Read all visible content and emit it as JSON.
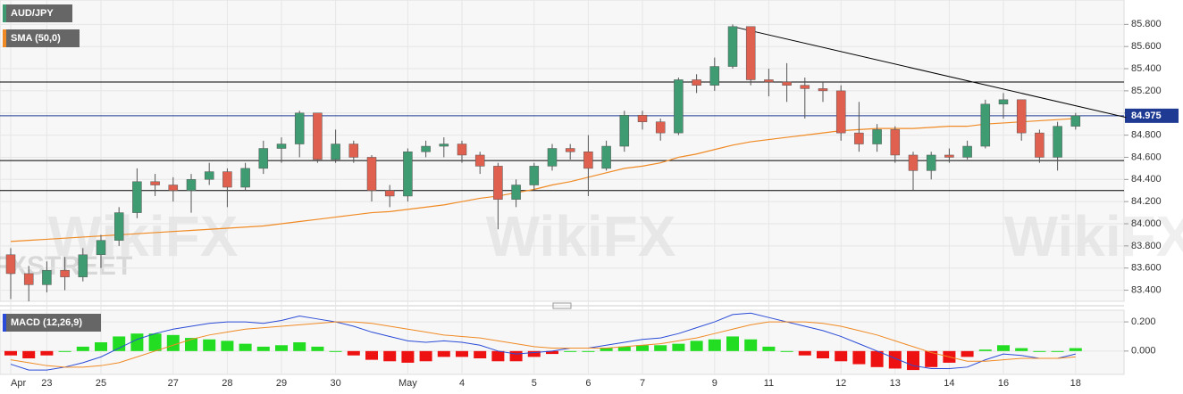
{
  "chart_data": [
    {
      "type": "candlestick",
      "title": "AUD/JPY",
      "title_color": "#3e9b72",
      "categories": [
        "Apr",
        null,
        "23",
        null,
        null,
        "25",
        null,
        null,
        null,
        "27",
        null,
        null,
        "28",
        null,
        null,
        "29",
        null,
        null,
        "30",
        null,
        null,
        null,
        "May",
        null,
        null,
        "4",
        null,
        null,
        null,
        "5",
        null,
        null,
        "6",
        null,
        null,
        "7",
        null,
        null,
        null,
        "9",
        null,
        null,
        "11",
        null,
        null,
        null,
        "12",
        null,
        null,
        "13",
        null,
        null,
        "14",
        null,
        null,
        "16",
        null,
        null,
        null,
        "18"
      ],
      "open": [
        83.72,
        83.55,
        83.45,
        83.58,
        83.52,
        83.72,
        83.85,
        84.1,
        84.38,
        84.35,
        84.3,
        84.4,
        84.47,
        84.33,
        84.5,
        84.68,
        84.72,
        85.0,
        84.58,
        84.72,
        84.6,
        84.3,
        84.25,
        84.65,
        84.7,
        84.72,
        84.62,
        84.52,
        84.22,
        84.35,
        84.52,
        84.68,
        84.65,
        84.5,
        84.7,
        84.98,
        84.92,
        84.82,
        85.3,
        85.25,
        85.42,
        85.78,
        85.3,
        85.28,
        85.25,
        85.22,
        85.2,
        84.82,
        84.72,
        84.85,
        84.62,
        84.48,
        84.62,
        84.6,
        84.7,
        85.08,
        85.12,
        84.82,
        84.6,
        84.88
      ],
      "high": [
        83.78,
        83.62,
        83.66,
        83.7,
        83.78,
        83.9,
        84.15,
        84.5,
        84.45,
        84.42,
        84.45,
        84.55,
        84.5,
        84.55,
        84.75,
        84.78,
        85.02,
        85.0,
        84.85,
        84.75,
        84.62,
        84.35,
        84.68,
        84.75,
        84.78,
        84.75,
        84.65,
        84.55,
        84.4,
        84.55,
        84.72,
        84.72,
        84.8,
        84.75,
        85.02,
        85.02,
        84.95,
        85.32,
        85.35,
        85.5,
        85.8,
        85.78,
        85.4,
        85.45,
        85.32,
        85.28,
        85.25,
        85.1,
        84.9,
        84.88,
        84.65,
        84.65,
        84.68,
        84.75,
        85.12,
        85.18,
        85.12,
        84.85,
        84.92,
        85.0
      ],
      "low": [
        83.32,
        83.3,
        83.38,
        83.4,
        83.48,
        83.6,
        83.8,
        84.05,
        84.25,
        84.2,
        84.1,
        84.35,
        84.15,
        84.3,
        84.45,
        84.55,
        84.6,
        84.55,
        84.55,
        84.55,
        84.2,
        84.15,
        84.2,
        84.6,
        84.6,
        84.55,
        84.45,
        83.95,
        84.15,
        84.3,
        84.48,
        84.58,
        84.25,
        84.48,
        84.65,
        84.85,
        84.75,
        84.8,
        85.18,
        85.2,
        85.4,
        85.25,
        85.15,
        85.1,
        84.95,
        85.1,
        84.75,
        84.65,
        84.65,
        84.55,
        84.3,
        84.4,
        84.55,
        84.58,
        84.68,
        84.95,
        84.75,
        84.55,
        84.48,
        84.85
      ],
      "close": [
        83.55,
        83.45,
        83.58,
        83.52,
        83.72,
        83.85,
        84.1,
        84.38,
        84.35,
        84.3,
        84.4,
        84.47,
        84.33,
        84.5,
        84.68,
        84.72,
        85.0,
        84.58,
        84.72,
        84.6,
        84.3,
        84.25,
        84.65,
        84.7,
        84.72,
        84.62,
        84.52,
        84.22,
        84.35,
        84.52,
        84.68,
        84.65,
        84.5,
        84.7,
        84.98,
        84.92,
        84.82,
        85.3,
        85.25,
        85.42,
        85.78,
        85.3,
        85.28,
        85.25,
        85.22,
        85.2,
        84.82,
        84.72,
        84.85,
        84.62,
        84.48,
        84.62,
        84.6,
        84.7,
        85.08,
        85.12,
        84.82,
        84.6,
        84.88,
        84.975
      ],
      "up_color": "#3e9b72",
      "down_color": "#e0604f",
      "sma": {
        "name": "SMA (50,0)",
        "color": "#f08a24",
        "values": [
          83.84,
          83.85,
          83.86,
          83.87,
          83.88,
          83.89,
          83.9,
          83.91,
          83.92,
          83.93,
          83.94,
          83.95,
          83.96,
          83.97,
          83.98,
          84.0,
          84.02,
          84.04,
          84.06,
          84.08,
          84.1,
          84.11,
          84.13,
          84.15,
          84.17,
          84.2,
          84.23,
          84.25,
          84.28,
          84.31,
          84.35,
          84.38,
          84.42,
          84.46,
          84.5,
          84.52,
          84.55,
          84.6,
          84.63,
          84.67,
          84.71,
          84.74,
          84.76,
          84.78,
          84.8,
          84.82,
          84.84,
          84.85,
          84.86,
          84.86,
          84.86,
          84.87,
          84.88,
          84.88,
          84.9,
          84.91,
          84.92,
          84.93,
          84.94,
          84.95
        ]
      },
      "levels": [
        85.28,
        84.57,
        84.3
      ],
      "last_price": 84.975,
      "last_price_color": "#1f3a93",
      "trendline": {
        "x": [
          40,
          61.8
        ],
        "y": [
          85.78,
          84.96
        ]
      },
      "watermarks": [
        "WikiFX",
        "FXSTREET"
      ],
      "ylim": [
        83.3,
        86.02
      ],
      "yticks": [
        {
          "value": 83.4,
          "label": "83.400"
        },
        {
          "value": 83.6,
          "label": "83.600"
        },
        {
          "value": 83.8,
          "label": "83.800"
        },
        {
          "value": 84.0,
          "label": "84.000"
        },
        {
          "value": 84.2,
          "label": "84.200"
        },
        {
          "value": 84.4,
          "label": "84.400"
        },
        {
          "value": 84.6,
          "label": "84.600"
        },
        {
          "value": 84.8,
          "label": "84.800"
        },
        {
          "value": 85.0,
          "label": "85.000"
        },
        {
          "value": 85.2,
          "label": "85.200"
        },
        {
          "value": 85.4,
          "label": "85.400"
        },
        {
          "value": 85.6,
          "label": "85.600"
        },
        {
          "value": 85.8,
          "label": "85.800"
        }
      ],
      "grid": true
    },
    {
      "type": "macd",
      "title": "MACD (12,26,9)",
      "title_color": "#2a4bd7",
      "macd": {
        "color": "#2a4bd7",
        "values": [
          -0.09,
          -0.13,
          -0.13,
          -0.11,
          -0.08,
          -0.04,
          0.02,
          0.08,
          0.12,
          0.15,
          0.17,
          0.19,
          0.2,
          0.2,
          0.19,
          0.21,
          0.24,
          0.22,
          0.2,
          0.17,
          0.13,
          0.1,
          0.07,
          0.06,
          0.07,
          0.06,
          0.04,
          0.0,
          -0.02,
          -0.01,
          0.0,
          0.02,
          0.02,
          0.04,
          0.06,
          0.08,
          0.09,
          0.12,
          0.16,
          0.2,
          0.25,
          0.26,
          0.23,
          0.2,
          0.17,
          0.14,
          0.1,
          0.05,
          0.0,
          -0.05,
          -0.1,
          -0.12,
          -0.12,
          -0.11,
          -0.06,
          -0.02,
          -0.03,
          -0.05,
          -0.05,
          -0.02
        ]
      },
      "signal": {
        "color": "#f08a24",
        "values": [
          -0.06,
          -0.08,
          -0.1,
          -0.11,
          -0.11,
          -0.1,
          -0.08,
          -0.04,
          0.0,
          0.04,
          0.08,
          0.11,
          0.13,
          0.15,
          0.16,
          0.17,
          0.18,
          0.19,
          0.2,
          0.2,
          0.19,
          0.17,
          0.15,
          0.13,
          0.11,
          0.1,
          0.09,
          0.07,
          0.05,
          0.03,
          0.02,
          0.02,
          0.02,
          0.02,
          0.03,
          0.04,
          0.05,
          0.07,
          0.09,
          0.12,
          0.15,
          0.18,
          0.2,
          0.2,
          0.2,
          0.19,
          0.17,
          0.14,
          0.11,
          0.07,
          0.03,
          -0.01,
          -0.04,
          -0.07,
          -0.07,
          -0.06,
          -0.05,
          -0.05,
          -0.05,
          -0.04
        ]
      },
      "histogram": {
        "up_color": "#22dd22",
        "down_color": "#ee1111",
        "values": [
          -0.03,
          -0.05,
          -0.03,
          0.0,
          0.03,
          0.06,
          0.1,
          0.12,
          0.12,
          0.11,
          0.09,
          0.08,
          0.07,
          0.05,
          0.03,
          0.04,
          0.06,
          0.03,
          0.0,
          -0.03,
          -0.06,
          -0.07,
          -0.08,
          -0.07,
          -0.04,
          -0.04,
          -0.05,
          -0.07,
          -0.07,
          -0.04,
          -0.02,
          0.0,
          0.0,
          0.02,
          0.03,
          0.04,
          0.04,
          0.05,
          0.07,
          0.08,
          0.1,
          0.08,
          0.03,
          0.0,
          -0.03,
          -0.05,
          -0.07,
          -0.09,
          -0.11,
          -0.12,
          -0.13,
          -0.11,
          -0.08,
          -0.04,
          0.01,
          0.04,
          0.02,
          0.0,
          0.0,
          0.02
        ]
      },
      "ylim": [
        -0.16,
        0.28
      ],
      "yticks": [
        {
          "value": 0.0,
          "label": "0.000"
        },
        {
          "value": 0.2,
          "label": "0.200"
        }
      ],
      "grid": true
    }
  ]
}
